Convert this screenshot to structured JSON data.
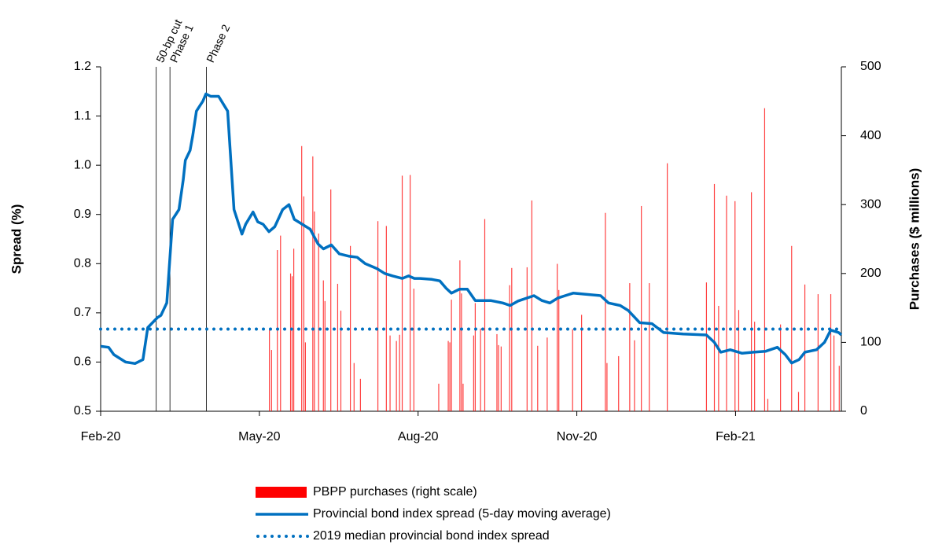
{
  "chart_data": {
    "type": "combo",
    "ylabel": "Spread (%)",
    "y2label": "Purchases ($ millions)",
    "xlim": [
      0,
      14
    ],
    "xticks": [
      {
        "value": 0,
        "label": "Feb-20"
      },
      {
        "value": 3,
        "label": "May-20"
      },
      {
        "value": 6,
        "label": "Aug-20"
      },
      {
        "value": 9,
        "label": "Nov-20"
      },
      {
        "value": 12,
        "label": "Feb-21"
      }
    ],
    "ylim": [
      0.5,
      1.2
    ],
    "yticks": [
      0.5,
      0.6,
      0.7,
      0.8,
      0.9,
      {
        "value": 1,
        "label": "1.0"
      },
      1.1,
      1.2
    ],
    "y2lim": [
      0,
      500
    ],
    "y2ticks": [
      0,
      100,
      200,
      300,
      400,
      500
    ],
    "annotations": [
      {
        "text": "50-bp cut",
        "x": 1.05
      },
      {
        "text": "Phase 1",
        "x": 1.31
      },
      {
        "text": "Phase 2",
        "x": 2.0
      }
    ],
    "series": [
      {
        "name": "PBPP purchases (right scale)",
        "type": "bar",
        "axis": "y2",
        "color": "#ff0000",
        "x": [
          3.19,
          3.23,
          3.34,
          3.4,
          3.59,
          3.62,
          3.65,
          3.8,
          3.84,
          3.87,
          4.01,
          4.04,
          4.12,
          4.21,
          4.24,
          4.35,
          4.48,
          4.54,
          4.72,
          4.79,
          4.91,
          5.24,
          5.4,
          5.47,
          5.59,
          5.65,
          5.7,
          5.85,
          5.92,
          6.39,
          6.57,
          6.6,
          6.63,
          6.79,
          6.82,
          6.85,
          7.05,
          7.08,
          7.18,
          7.26,
          7.49,
          7.52,
          7.57,
          7.73,
          7.77,
          8.06,
          8.15,
          8.26,
          8.44,
          8.63,
          8.66,
          8.92,
          9.09,
          9.54,
          9.57,
          9.79,
          10.0,
          10.09,
          10.22,
          10.37,
          10.71,
          11.45,
          11.6,
          11.68,
          11.83,
          11.99,
          12.06,
          12.3,
          12.36,
          12.55,
          12.61,
          12.85,
          13.06,
          13.19,
          13.31,
          13.56,
          13.8,
          13.86,
          13.96
        ],
        "values": [
          118,
          89,
          234,
          255,
          200,
          196,
          236,
          385,
          312,
          100,
          370,
          290,
          258,
          190,
          160,
          322,
          185,
          146,
          240,
          70,
          47,
          276,
          269,
          110,
          102,
          111,
          342,
          343,
          178,
          40,
          102,
          100,
          162,
          219,
          171,
          40,
          110,
          157,
          120,
          279,
          112,
          96,
          94,
          183,
          208,
          209,
          306,
          95,
          107,
          214,
          176,
          119,
          140,
          288,
          70,
          80,
          186,
          103,
          298,
          186,
          360,
          187,
          330,
          153,
          313,
          305,
          147,
          318,
          130,
          440,
          18,
          126,
          240,
          28,
          184,
          170,
          170,
          110,
          66
        ]
      },
      {
        "name": "Provincial bond index spread (5-day moving average)",
        "type": "line",
        "color": "#0070c0",
        "x": [
          0,
          0.15,
          0.25,
          0.47,
          0.65,
          0.8,
          0.89,
          1.07,
          1.14,
          1.25,
          1.36,
          1.48,
          1.56,
          1.6,
          1.69,
          1.74,
          1.81,
          1.93,
          1.99,
          2.08,
          2.23,
          2.4,
          2.52,
          2.67,
          2.74,
          2.88,
          2.97,
          3.07,
          3.18,
          3.29,
          3.44,
          3.56,
          3.66,
          3.81,
          3.96,
          4.11,
          4.21,
          4.36,
          4.51,
          4.7,
          4.85,
          5.0,
          5.22,
          5.37,
          5.52,
          5.7,
          5.82,
          5.93,
          6.04,
          6.26,
          6.41,
          6.53,
          6.63,
          6.78,
          6.93,
          7.08,
          7.37,
          7.6,
          7.74,
          7.89,
          8.19,
          8.34,
          8.49,
          8.64,
          8.78,
          8.93,
          9.15,
          9.45,
          9.6,
          9.82,
          9.97,
          10.19,
          10.42,
          10.64,
          11.01,
          11.45,
          11.6,
          11.72,
          11.9,
          12.12,
          12.34,
          12.57,
          12.79,
          12.94,
          13.06,
          13.2,
          13.31,
          13.53,
          13.68,
          13.8,
          13.95,
          14.0
        ],
        "values": [
          0.632,
          0.63,
          0.615,
          0.6,
          0.597,
          0.605,
          0.67,
          0.69,
          0.695,
          0.72,
          0.89,
          0.91,
          0.97,
          1.01,
          1.03,
          1.06,
          1.11,
          1.13,
          1.145,
          1.14,
          1.14,
          1.11,
          0.91,
          0.86,
          0.88,
          0.905,
          0.885,
          0.88,
          0.865,
          0.875,
          0.91,
          0.92,
          0.89,
          0.88,
          0.87,
          0.84,
          0.83,
          0.838,
          0.82,
          0.815,
          0.813,
          0.8,
          0.79,
          0.78,
          0.775,
          0.77,
          0.775,
          0.77,
          0.77,
          0.768,
          0.765,
          0.75,
          0.74,
          0.748,
          0.748,
          0.725,
          0.725,
          0.72,
          0.715,
          0.724,
          0.735,
          0.725,
          0.72,
          0.73,
          0.735,
          0.74,
          0.738,
          0.735,
          0.72,
          0.715,
          0.705,
          0.68,
          0.678,
          0.66,
          0.657,
          0.655,
          0.64,
          0.62,
          0.625,
          0.618,
          0.62,
          0.622,
          0.63,
          0.615,
          0.598,
          0.605,
          0.62,
          0.625,
          0.64,
          0.665,
          0.66,
          0.655
        ]
      },
      {
        "name": "2019 median provincial bond index spread",
        "type": "line",
        "style": "dotted",
        "color": "#0070c0",
        "x": [
          0,
          14
        ],
        "values": [
          0.667,
          0.667
        ]
      }
    ]
  }
}
